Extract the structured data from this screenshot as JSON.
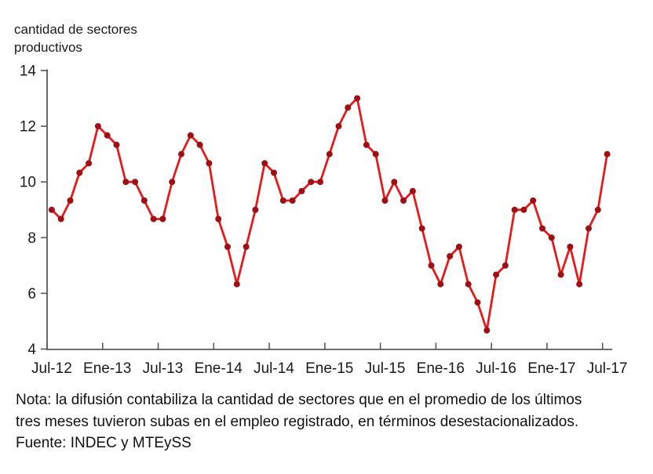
{
  "chart_data": {
    "type": "line",
    "title": "cantidad de sectores productivos",
    "series_name": "cantidad de sectores productivos",
    "x": [
      "Jul-12",
      "Ago-12",
      "Sep-12",
      "Oct-12",
      "Nov-12",
      "Dic-12",
      "Ene-13",
      "Feb-13",
      "Mar-13",
      "Abr-13",
      "May-13",
      "Jun-13",
      "Jul-13",
      "Ago-13",
      "Sep-13",
      "Oct-13",
      "Nov-13",
      "Dic-13",
      "Ene-14",
      "Feb-14",
      "Mar-14",
      "Abr-14",
      "May-14",
      "Jun-14",
      "Jul-14",
      "Ago-14",
      "Sep-14",
      "Oct-14",
      "Nov-14",
      "Dic-14",
      "Ene-15",
      "Feb-15",
      "Mar-15",
      "Abr-15",
      "May-15",
      "Jun-15",
      "Jul-15",
      "Ago-15",
      "Sep-15",
      "Oct-15",
      "Nov-15",
      "Dic-15",
      "Ene-16",
      "Feb-16",
      "Mar-16",
      "Abr-16",
      "May-16",
      "Jun-16",
      "Jul-16",
      "Ago-16",
      "Sep-16",
      "Oct-16",
      "Nov-16",
      "Dic-16",
      "Ene-17",
      "Feb-17",
      "Mar-17",
      "Abr-17",
      "May-17",
      "Jun-17",
      "Jul-17"
    ],
    "values": [
      9.0,
      8.67,
      9.33,
      10.33,
      10.67,
      12.0,
      11.67,
      11.33,
      10.0,
      10.0,
      9.33,
      8.67,
      8.67,
      10.0,
      11.0,
      11.67,
      11.33,
      10.67,
      8.67,
      7.67,
      6.33,
      7.67,
      9.0,
      10.67,
      10.33,
      9.33,
      9.33,
      9.67,
      10.0,
      10.0,
      11.0,
      12.0,
      12.67,
      13.0,
      11.33,
      11.0,
      9.33,
      10.0,
      9.33,
      9.67,
      8.33,
      7.0,
      6.33,
      7.33,
      7.67,
      6.33,
      5.67,
      4.67,
      6.67,
      7.0,
      9.0,
      9.0,
      9.33,
      8.33,
      8.0,
      6.67,
      7.67,
      6.33,
      8.33,
      9.0,
      11.0
    ],
    "ylim": [
      4,
      14
    ],
    "ytick_interval": 2,
    "ytick_labels": [
      "4",
      "6",
      "8",
      "10",
      "12",
      "14"
    ],
    "xtick_labels": [
      "Jul-12",
      "Ene-13",
      "Jul-13",
      "Ene-14",
      "Jul-14",
      "Ene-15",
      "Jul-15",
      "Ene-16",
      "Jul-16",
      "Ene-17",
      "Jul-17"
    ],
    "xtick_every": 6,
    "grid": false,
    "legend": "none",
    "colors": {
      "line": "#e51a1d",
      "marker": "#9e1014",
      "axis": "#595959",
      "text": "#1a1a1a"
    }
  },
  "footer": {
    "note_line1": "Nota: la difusión contabiliza  la cantidad de sectores que en el promedio de los últimos",
    "note_line2": "tres meses tuvieron subas en el empleo registrado, en términos desestacionalizados.",
    "source": "Fuente: INDEC y MTEySS"
  }
}
